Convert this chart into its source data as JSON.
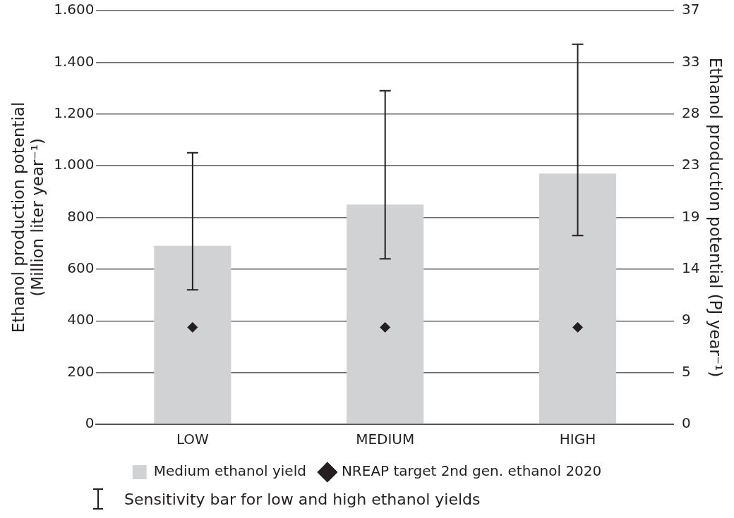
{
  "chart_data": {
    "type": "bar",
    "categories": [
      "LOW",
      "MEDIUM",
      "HIGH"
    ],
    "ylabel": "Ethanol production potential\n(Million liter year⁻¹)",
    "y2label": "Ethanol production potential (PJ year⁻¹)",
    "ylim": [
      0,
      1600
    ],
    "yticks": [
      0,
      200,
      400,
      600,
      800,
      {
        "value": 1000,
        "label": "1.000"
      },
      {
        "value": 1200,
        "label": "1.200"
      },
      {
        "value": 1400,
        "label": "1.400"
      },
      {
        "value": 1600,
        "label": "1.600"
      }
    ],
    "y2lim": [
      0,
      37.44
    ],
    "y2ticks": [
      0,
      {
        "value": 4.68,
        "label": "5"
      },
      {
        "value": 9.36,
        "label": "9"
      },
      {
        "value": 14.04,
        "label": "14"
      },
      {
        "value": 18.72,
        "label": "19"
      },
      {
        "value": 23.4,
        "label": "23"
      },
      {
        "value": 28.08,
        "label": "28"
      },
      {
        "value": 32.76,
        "label": "33"
      },
      {
        "value": 37.44,
        "label": "37"
      }
    ],
    "series": [
      {
        "name": "Medium ethanol yield",
        "color": "#d1d2d4",
        "values": [
          690,
          850,
          970
        ],
        "errors": [
          [
            520,
            1050
          ],
          [
            640,
            1290
          ],
          [
            730,
            1470
          ]
        ]
      },
      {
        "type": "scatter",
        "name": "NREAP target 2nd gen. ethanol 2020",
        "color": "#231f20",
        "marker": "diamond",
        "x": [
          "LOW",
          "MEDIUM",
          "HIGH"
        ],
        "values": [
          375,
          375,
          375
        ]
      }
    ],
    "annotations": [
      "Sensitivity bar for low and high ethanol yields"
    ],
    "grid": "y",
    "legend": "bottom"
  }
}
